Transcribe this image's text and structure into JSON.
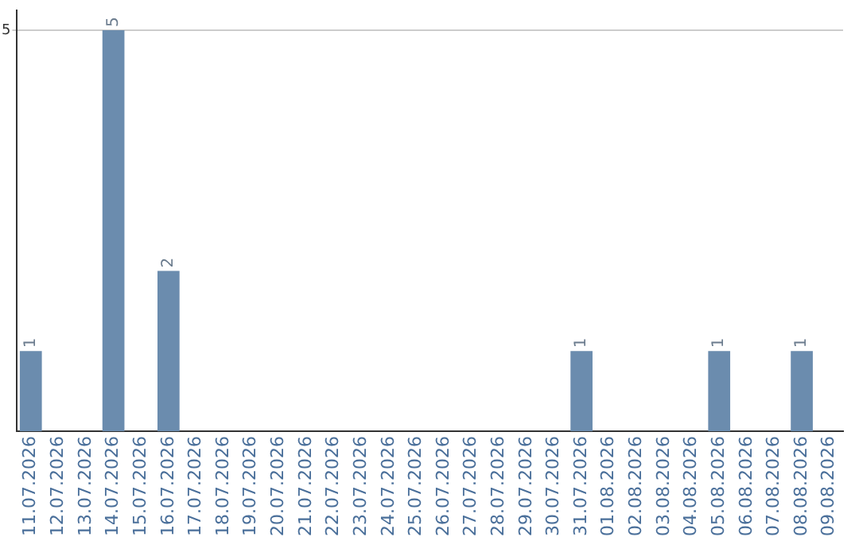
{
  "chart_data": {
    "type": "bar",
    "categories": [
      "11.07.2026",
      "12.07.2026",
      "13.07.2026",
      "14.07.2026",
      "15.07.2026",
      "16.07.2026",
      "17.07.2026",
      "18.07.2026",
      "19.07.2026",
      "20.07.2026",
      "21.07.2026",
      "22.07.2026",
      "23.07.2026",
      "24.07.2026",
      "25.07.2026",
      "26.07.2026",
      "27.07.2026",
      "28.07.2026",
      "29.07.2026",
      "30.07.2026",
      "31.07.2026",
      "01.08.2026",
      "02.08.2026",
      "03.08.2026",
      "04.08.2026",
      "05.08.2026",
      "06.08.2026",
      "07.08.2026",
      "08.08.2026",
      "09.08.2026"
    ],
    "values": [
      1,
      0,
      0,
      5,
      0,
      2,
      0,
      0,
      0,
      0,
      0,
      0,
      0,
      0,
      0,
      0,
      0,
      0,
      0,
      0,
      1,
      0,
      0,
      0,
      0,
      1,
      0,
      0,
      1,
      0
    ],
    "color": "#6b8cae",
    "value_labels": [
      "1",
      null,
      null,
      "5",
      null,
      "2",
      null,
      null,
      null,
      null,
      null,
      null,
      null,
      null,
      null,
      null,
      null,
      null,
      null,
      null,
      "1",
      null,
      null,
      null,
      null,
      "1",
      null,
      null,
      "1",
      null
    ],
    "ylim": [
      0,
      5.25
    ],
    "yticks": [
      5
    ],
    "grid": "y",
    "legend": false
  }
}
